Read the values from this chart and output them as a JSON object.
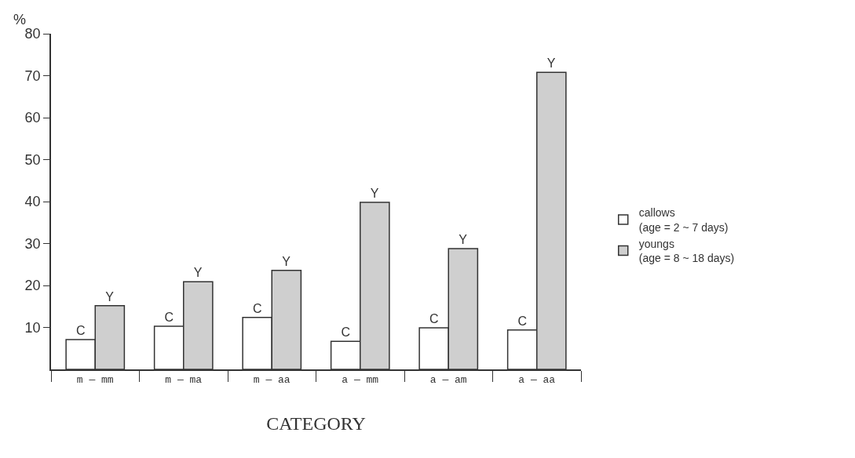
{
  "chart_data": {
    "type": "bar",
    "xlabel": "CATEGORY",
    "ylabel": "%",
    "categories": [
      "m — mm",
      "m — ma",
      "m — aa",
      "a — mm",
      "a — am",
      "a — aa"
    ],
    "series": [
      {
        "name": "callows\n(age = 2 ~ 7 days)",
        "color": "#ffffff",
        "values": [
          7.1,
          10.3,
          12.4,
          6.7,
          9.9,
          9.4
        ],
        "value_labels": [
          "C",
          "C",
          "C",
          "C",
          "C",
          "C"
        ]
      },
      {
        "name": "youngs\n(age = 8 ~ 18 days)",
        "color": "#cfcfcf",
        "values": [
          15.2,
          20.9,
          23.6,
          39.8,
          28.8,
          70.8
        ],
        "value_labels": [
          "Y",
          "Y",
          "Y",
          "Y",
          "Y",
          "Y"
        ]
      }
    ],
    "ylim": [
      0,
      80
    ],
    "yticks": [
      10,
      20,
      30,
      40,
      50,
      60,
      70,
      80
    ],
    "grid": false,
    "legend": "right"
  }
}
